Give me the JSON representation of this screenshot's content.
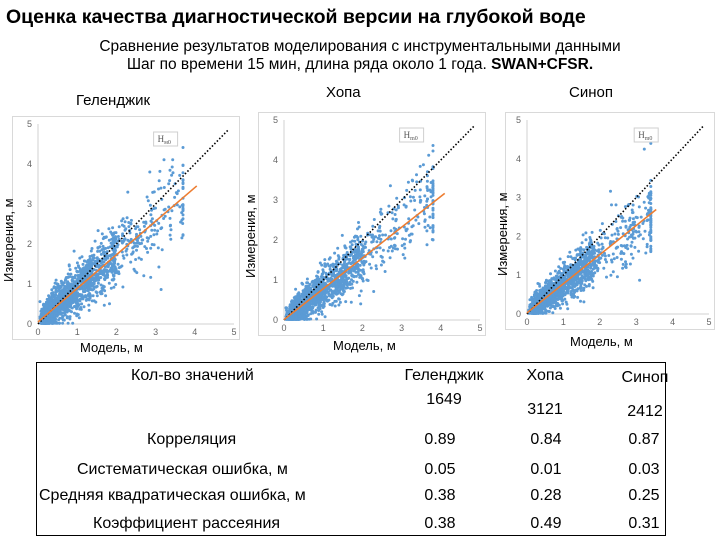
{
  "title": "Оценка качества диагностической версии на глубокой воде",
  "subtitle_line1": "Сравнение результатов моделирования с инструментальными данными",
  "subtitle_line2_prefix": "Шаг по времени 15 мин, длина ряда  около 1 года. ",
  "subtitle_line2_bold": "SWAN+CFSR.",
  "colors": {
    "points": "#5b9bd5",
    "regression": "#ed7d31",
    "identity": "#000000",
    "frame": "#d9d9d9"
  },
  "chart_data": [
    {
      "type": "scatter",
      "station": "Геленджик",
      "xlabel": "Модель, м",
      "ylabel": "Измерения, м",
      "label_box": "H",
      "label_box_sub": "м0",
      "xlim": [
        0,
        5
      ],
      "ylim": [
        0,
        5
      ],
      "xticks": [
        0,
        1,
        2,
        3,
        4,
        5
      ],
      "yticks": [
        0,
        1,
        2,
        3,
        4,
        5
      ],
      "identity_line": true,
      "regression_line": {
        "slope": 0.84,
        "intercept": 0.05,
        "x_range": [
          0,
          4.05
        ]
      },
      "cloud": {
        "count": 1649,
        "x_max": 3.7,
        "spread": 0.35
      }
    },
    {
      "type": "scatter",
      "station": "Хопа",
      "xlabel": "Модель, м",
      "ylabel": "Измерения, м",
      "label_box": "H",
      "label_box_sub": "m0",
      "xlim": [
        0,
        5
      ],
      "ylim": [
        0,
        5
      ],
      "xticks": [
        0,
        1,
        2,
        3,
        4,
        5
      ],
      "yticks": [
        0,
        1,
        2,
        3,
        4,
        5
      ],
      "identity_line": true,
      "regression_line": {
        "slope": 0.77,
        "intercept": 0.01,
        "x_range": [
          0,
          4.1
        ]
      },
      "cloud": {
        "count": 3121,
        "x_max": 3.8,
        "spread": 0.3
      }
    },
    {
      "type": "scatter",
      "station": "Синоп",
      "xlabel": "Модель, м",
      "ylabel": "Измерения, м",
      "label_box": "H",
      "label_box_sub": "m0",
      "xlim": [
        0,
        5
      ],
      "ylim": [
        0,
        5
      ],
      "xticks": [
        0,
        1,
        2,
        3,
        4,
        5
      ],
      "yticks": [
        0,
        1,
        2,
        3,
        4,
        5
      ],
      "identity_line": true,
      "regression_line": {
        "slope": 0.75,
        "intercept": 0.03,
        "x_range": [
          0,
          3.55
        ]
      },
      "cloud": {
        "count": 2412,
        "x_max": 3.4,
        "spread": 0.28
      }
    }
  ],
  "table": {
    "header": "Кол-во значений",
    "stations": [
      {
        "name": "Геленджик",
        "count": "1649"
      },
      {
        "name": "Хопа",
        "count": "3121"
      },
      {
        "name": "Синоп",
        "count": "2412"
      }
    ],
    "rows": [
      {
        "label": "Корреляция",
        "values": [
          "0.89",
          "0.84",
          "0.87"
        ]
      },
      {
        "label": "Систематическая ошибка, м",
        "values": [
          "0.05",
          "0.01",
          "0.03"
        ]
      },
      {
        "label": "Средняя квадратическая ошибка, м",
        "values": [
          "0.38",
          "0.28",
          "0.25"
        ]
      },
      {
        "label": "Коэффициент рассеяния",
        "values": [
          "0.38",
          "0.49",
          "0.31"
        ]
      }
    ]
  }
}
